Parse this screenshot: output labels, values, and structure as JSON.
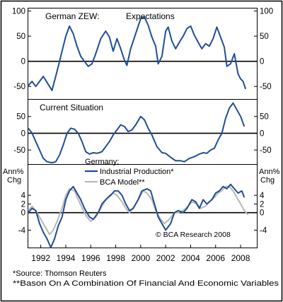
{
  "colors": {
    "series": "#1f4e96",
    "secondary": "#b8b8b8",
    "zero": "#000000",
    "text": "#000000",
    "frame": "#000000"
  },
  "footer": {
    "source": "*Source: Thomson Reuters",
    "note": "**Bason On A Combination Of Financial And Economic Variables"
  },
  "chart_data": [
    {
      "type": "line",
      "title": "German ZEW:",
      "subtitle": "Expectations",
      "ylim": [
        -75,
        105
      ],
      "y_ticks": [
        "100",
        "50",
        "0",
        "-50"
      ],
      "y_tick_values": [
        100,
        50,
        0,
        -50
      ],
      "series": [
        {
          "values": [
            [
              1991.0,
              -48
            ],
            [
              1991.3,
              -40
            ],
            [
              1991.6,
              -50
            ],
            [
              1991.9,
              -40
            ],
            [
              1992.2,
              -30
            ],
            [
              1992.5,
              -42
            ],
            [
              1992.9,
              -58
            ],
            [
              1993.3,
              -20
            ],
            [
              1993.7,
              20
            ],
            [
              1994.0,
              50
            ],
            [
              1994.3,
              70
            ],
            [
              1994.6,
              55
            ],
            [
              1994.9,
              30
            ],
            [
              1995.2,
              10
            ],
            [
              1995.5,
              0
            ],
            [
              1995.8,
              -10
            ],
            [
              1996.1,
              -5
            ],
            [
              1996.4,
              15
            ],
            [
              1996.8,
              45
            ],
            [
              1997.2,
              60
            ],
            [
              1997.5,
              48
            ],
            [
              1997.8,
              20
            ],
            [
              1998.1,
              45
            ],
            [
              1998.4,
              25
            ],
            [
              1998.7,
              2
            ],
            [
              1998.9,
              -8
            ],
            [
              1999.2,
              25
            ],
            [
              1999.6,
              55
            ],
            [
              2000.0,
              85
            ],
            [
              2000.3,
              88
            ],
            [
              2000.6,
              72
            ],
            [
              2000.9,
              48
            ],
            [
              2001.2,
              30
            ],
            [
              2001.4,
              -5
            ],
            [
              2001.7,
              10
            ],
            [
              2002.0,
              60
            ],
            [
              2002.2,
              68
            ],
            [
              2002.5,
              40
            ],
            [
              2002.8,
              25
            ],
            [
              2003.1,
              38
            ],
            [
              2003.4,
              50
            ],
            [
              2003.7,
              65
            ],
            [
              2004.0,
              70
            ],
            [
              2004.3,
              52
            ],
            [
              2004.6,
              38
            ],
            [
              2004.9,
              25
            ],
            [
              2005.2,
              35
            ],
            [
              2005.5,
              30
            ],
            [
              2005.8,
              45
            ],
            [
              2006.1,
              68
            ],
            [
              2006.4,
              48
            ],
            [
              2006.7,
              28
            ],
            [
              2006.9,
              -10
            ],
            [
              2007.2,
              -5
            ],
            [
              2007.5,
              15
            ],
            [
              2007.8,
              -25
            ],
            [
              2008.0,
              -35
            ],
            [
              2008.2,
              -40
            ],
            [
              2008.4,
              -55
            ]
          ]
        }
      ]
    },
    {
      "type": "line",
      "title": "Current Situation",
      "ylim": [
        -92,
        100
      ],
      "y_ticks": [
        "50",
        "0",
        "-50"
      ],
      "y_tick_values": [
        50,
        0,
        -50
      ],
      "series": [
        {
          "values": [
            [
              1991.0,
              15
            ],
            [
              1991.3,
              0
            ],
            [
              1991.6,
              -25
            ],
            [
              1991.9,
              -50
            ],
            [
              1992.2,
              -75
            ],
            [
              1992.5,
              -85
            ],
            [
              1992.9,
              -88
            ],
            [
              1993.2,
              -85
            ],
            [
              1993.5,
              -65
            ],
            [
              1993.8,
              -35
            ],
            [
              1994.1,
              0
            ],
            [
              1994.4,
              15
            ],
            [
              1994.7,
              12
            ],
            [
              1995.0,
              0
            ],
            [
              1995.3,
              -25
            ],
            [
              1995.6,
              -55
            ],
            [
              1995.9,
              -62
            ],
            [
              1996.2,
              -58
            ],
            [
              1996.5,
              -60
            ],
            [
              1996.9,
              -55
            ],
            [
              1997.2,
              -40
            ],
            [
              1997.5,
              -25
            ],
            [
              1997.8,
              -5
            ],
            [
              1998.1,
              10
            ],
            [
              1998.4,
              25
            ],
            [
              1998.7,
              20
            ],
            [
              1999.0,
              5
            ],
            [
              1999.3,
              10
            ],
            [
              1999.6,
              25
            ],
            [
              2000.0,
              50
            ],
            [
              2000.3,
              40
            ],
            [
              2000.6,
              15
            ],
            [
              2000.9,
              -5
            ],
            [
              2001.3,
              -40
            ],
            [
              2001.7,
              -58
            ],
            [
              2002.0,
              -60
            ],
            [
              2002.4,
              -72
            ],
            [
              2002.8,
              -82
            ],
            [
              2003.2,
              -82
            ],
            [
              2003.5,
              -85
            ],
            [
              2003.9,
              -75
            ],
            [
              2004.3,
              -70
            ],
            [
              2004.7,
              -62
            ],
            [
              2005.0,
              -58
            ],
            [
              2005.3,
              -60
            ],
            [
              2005.6,
              -50
            ],
            [
              2005.9,
              -45
            ],
            [
              2006.2,
              -20
            ],
            [
              2006.5,
              0
            ],
            [
              2006.8,
              45
            ],
            [
              2007.1,
              75
            ],
            [
              2007.4,
              90
            ],
            [
              2007.7,
              70
            ],
            [
              2008.0,
              50
            ],
            [
              2008.3,
              20
            ]
          ]
        }
      ]
    },
    {
      "type": "line",
      "title": "Germany:",
      "ylabel": "Ann% Chg",
      "ylim": [
        -8,
        11
      ],
      "y_ticks": [
        "4",
        "2",
        "0",
        "-4"
      ],
      "y_tick_values": [
        4,
        2,
        0,
        -4
      ],
      "x_ticks": [
        "1992",
        "1994",
        "1996",
        "1998",
        "2000",
        "2002",
        "2004",
        "2006",
        "2008"
      ],
      "x_tick_values": [
        1992,
        1994,
        1996,
        1998,
        2000,
        2002,
        2004,
        2006,
        2008
      ],
      "xlim": [
        1991,
        2009.3
      ],
      "annotation": "© BCA Research 2008",
      "series": [
        {
          "name": "Industrial Production*",
          "values": [
            [
              1991.0,
              0
            ],
            [
              1991.3,
              1
            ],
            [
              1991.6,
              0.5
            ],
            [
              1991.9,
              -2.5
            ],
            [
              1992.2,
              -4.5
            ],
            [
              1992.5,
              -6
            ],
            [
              1992.8,
              -8
            ],
            [
              1993.1,
              -6
            ],
            [
              1993.4,
              -3
            ],
            [
              1993.7,
              -1
            ],
            [
              1994.0,
              3
            ],
            [
              1994.3,
              5
            ],
            [
              1994.6,
              6
            ],
            [
              1994.9,
              4.5
            ],
            [
              1995.2,
              3
            ],
            [
              1995.5,
              1
            ],
            [
              1995.9,
              -1
            ],
            [
              1996.2,
              -1.5
            ],
            [
              1996.6,
              0
            ],
            [
              1996.9,
              2
            ],
            [
              1997.2,
              3
            ],
            [
              1997.6,
              4
            ],
            [
              1997.9,
              5
            ],
            [
              1998.2,
              5
            ],
            [
              1998.5,
              4
            ],
            [
              1998.8,
              2
            ],
            [
              1999.1,
              0.5
            ],
            [
              1999.4,
              1
            ],
            [
              1999.8,
              3
            ],
            [
              2000.1,
              5
            ],
            [
              2000.5,
              5.5
            ],
            [
              2000.8,
              5
            ],
            [
              2001.1,
              2
            ],
            [
              2001.4,
              -1
            ],
            [
              2001.7,
              -2.5
            ],
            [
              2002.0,
              -4
            ],
            [
              2002.4,
              -2.5
            ],
            [
              2002.7,
              0
            ],
            [
              2003.0,
              0.5
            ],
            [
              2003.4,
              0
            ],
            [
              2003.7,
              1
            ],
            [
              2004.1,
              3
            ],
            [
              2004.4,
              2.5
            ],
            [
              2004.7,
              1
            ],
            [
              2005.0,
              3
            ],
            [
              2005.3,
              2
            ],
            [
              2005.7,
              3
            ],
            [
              2006.0,
              4.5
            ],
            [
              2006.3,
              5
            ],
            [
              2006.6,
              6
            ],
            [
              2006.9,
              5.5
            ],
            [
              2007.2,
              6.5
            ],
            [
              2007.5,
              5.5
            ],
            [
              2007.8,
              4.5
            ],
            [
              2008.1,
              5
            ],
            [
              2008.3,
              3.5
            ]
          ]
        },
        {
          "name": "BCA Model**",
          "values": [
            [
              1991.0,
              0.5
            ],
            [
              1991.3,
              1.5
            ],
            [
              1991.7,
              0
            ],
            [
              1992.0,
              -1.5
            ],
            [
              1992.4,
              -3.5
            ],
            [
              1992.7,
              -5
            ],
            [
              1993.0,
              -4
            ],
            [
              1993.3,
              -2
            ],
            [
              1993.7,
              1
            ],
            [
              1994.0,
              4
            ],
            [
              1994.3,
              5.5
            ],
            [
              1994.7,
              5
            ],
            [
              1995.0,
              3
            ],
            [
              1995.4,
              0.5
            ],
            [
              1995.7,
              -1
            ],
            [
              1996.0,
              -2
            ],
            [
              1996.4,
              -1
            ],
            [
              1996.8,
              1
            ],
            [
              1997.1,
              2.5
            ],
            [
              1997.5,
              4
            ],
            [
              1997.8,
              4.5
            ],
            [
              1998.1,
              4
            ],
            [
              1998.5,
              2.5
            ],
            [
              1998.8,
              1
            ],
            [
              1999.1,
              0
            ],
            [
              1999.5,
              1.5
            ],
            [
              1999.9,
              3.5
            ],
            [
              2000.2,
              5
            ],
            [
              2000.5,
              4.5
            ],
            [
              2000.9,
              3
            ],
            [
              2001.2,
              0.5
            ],
            [
              2001.6,
              -1.5
            ],
            [
              2001.9,
              -2.5
            ],
            [
              2002.3,
              -1.5
            ],
            [
              2002.7,
              0
            ],
            [
              2003.0,
              0
            ],
            [
              2003.4,
              0.5
            ],
            [
              2003.8,
              1.5
            ],
            [
              2004.1,
              2.5
            ],
            [
              2004.5,
              2
            ],
            [
              2004.8,
              1
            ],
            [
              2005.2,
              1.5
            ],
            [
              2005.5,
              2.5
            ],
            [
              2005.9,
              3.5
            ],
            [
              2006.2,
              4.5
            ],
            [
              2006.5,
              5
            ],
            [
              2006.8,
              6
            ],
            [
              2007.1,
              6
            ],
            [
              2007.4,
              5
            ],
            [
              2007.7,
              3.5
            ],
            [
              2008.0,
              2
            ],
            [
              2008.3,
              0.5
            ],
            [
              2008.6,
              -0.5
            ]
          ]
        }
      ]
    }
  ]
}
